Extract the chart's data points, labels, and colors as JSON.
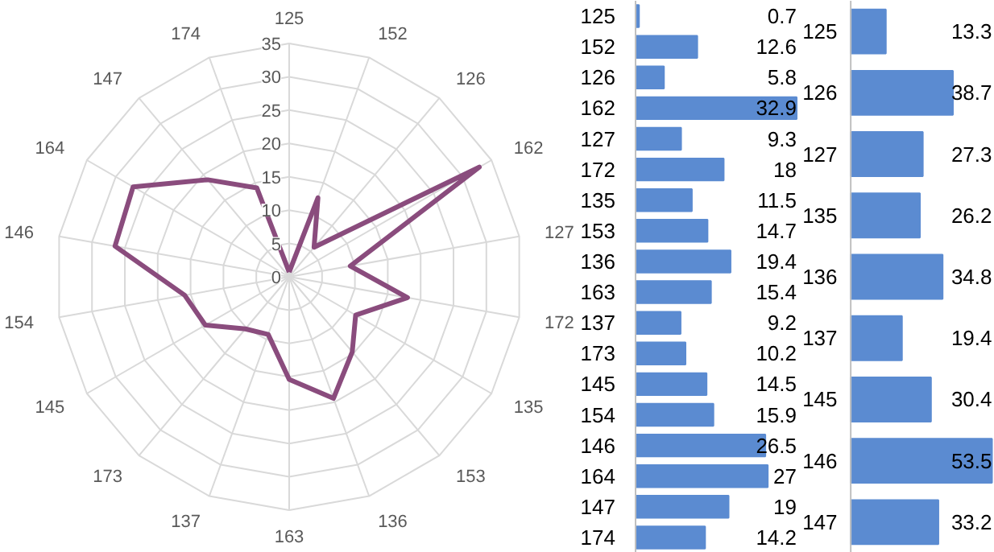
{
  "chart_data": [
    {
      "type": "radar",
      "categories": [
        "125",
        "152",
        "126",
        "162",
        "127",
        "172",
        "135",
        "153",
        "136",
        "163",
        "137",
        "173",
        "145",
        "154",
        "146",
        "164",
        "147",
        "174"
      ],
      "series": [
        {
          "color": "#8a4c7d",
          "values": [
            0.7,
            12.6,
            5.8,
            32.9,
            9.3,
            18,
            11.5,
            14.7,
            19.4,
            15.4,
            9.2,
            10.2,
            14.5,
            15.9,
            26.5,
            27,
            19,
            14.2
          ]
        }
      ],
      "ylim": [
        0,
        35
      ],
      "yticks": [
        0,
        5,
        10,
        15,
        20,
        25,
        30,
        35
      ],
      "grid": true
    },
    {
      "type": "bar",
      "orientation": "horizontal",
      "categories": [
        "125",
        "152",
        "126",
        "162",
        "127",
        "172",
        "135",
        "153",
        "136",
        "163",
        "137",
        "173",
        "145",
        "154",
        "146",
        "164",
        "147",
        "174"
      ],
      "values": [
        0.7,
        12.6,
        5.8,
        32.9,
        9.3,
        18,
        11.5,
        14.7,
        19.4,
        15.4,
        9.2,
        10.2,
        14.5,
        15.9,
        26.5,
        27,
        19,
        14.2
      ],
      "color": "#5b8bd1",
      "data_labels": true
    },
    {
      "type": "bar",
      "orientation": "horizontal",
      "categories": [
        "125",
        "126",
        "127",
        "135",
        "136",
        "137",
        "145",
        "146",
        "147"
      ],
      "values": [
        13.3,
        38.7,
        27.3,
        26.2,
        34.8,
        19.4,
        30.4,
        53.5,
        33.2
      ],
      "color": "#5b8bd1",
      "data_labels": true
    }
  ]
}
